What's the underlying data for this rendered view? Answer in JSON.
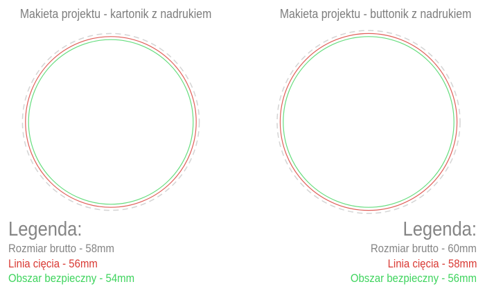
{
  "colors": {
    "text_gray": "#7d7d7d",
    "legend_gray": "#858585",
    "red": "#d93a34",
    "green": "#3fd45e",
    "dash_gray": "#d4d4d4"
  },
  "panels": [
    {
      "title": "Makieta projektu - kartonik z nadrukiem",
      "sizes_mm": {
        "gross": 58,
        "cut": 56,
        "safe": 54
      },
      "legend": {
        "heading": "Legenda:",
        "rows": [
          {
            "label": "Rozmiar brutto - 58mm"
          },
          {
            "label": "Linia cięcia - 56mm"
          },
          {
            "label": "Obszar bezpieczny - 54mm"
          }
        ]
      }
    },
    {
      "title": "Makieta projektu - buttonik z nadrukiem",
      "sizes_mm": {
        "gross": 60,
        "cut": 58,
        "safe": 56
      },
      "legend": {
        "heading": "Legenda:",
        "rows": [
          {
            "label": "Rozmiar brutto - 60mm"
          },
          {
            "label": "Linia cięcia - 58mm"
          },
          {
            "label": "Obszar bezpieczny - 56mm"
          }
        ]
      }
    }
  ]
}
